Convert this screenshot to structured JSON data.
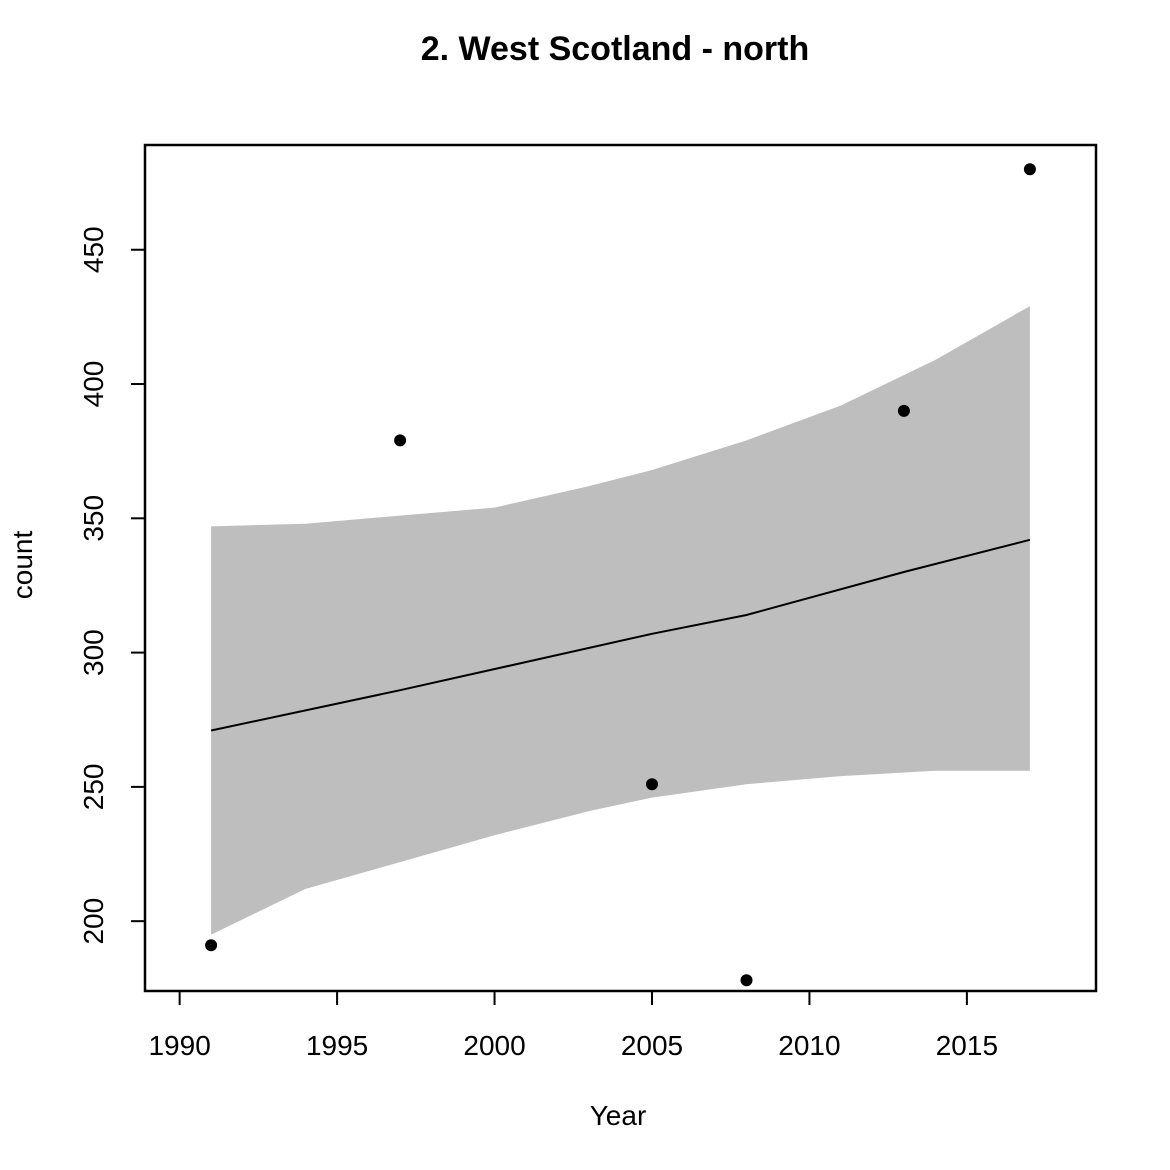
{
  "chart_data": {
    "type": "scatter",
    "title": "2. West Scotland - north",
    "xlabel": "Year",
    "ylabel": "count",
    "xlim": [
      1988.9,
      2019.1
    ],
    "ylim": [
      174,
      489
    ],
    "xticks": [
      1990,
      1995,
      2000,
      2005,
      2010,
      2015
    ],
    "yticks": [
      200,
      250,
      300,
      350,
      400,
      450
    ],
    "grid": false,
    "points": [
      {
        "x": 1991,
        "y": 191
      },
      {
        "x": 1997,
        "y": 379
      },
      {
        "x": 2005,
        "y": 251
      },
      {
        "x": 2008,
        "y": 178
      },
      {
        "x": 2013,
        "y": 390
      },
      {
        "x": 2017,
        "y": 480
      }
    ],
    "fit_line": {
      "x": [
        1991,
        1997,
        2005,
        2008,
        2013,
        2017
      ],
      "y": [
        271,
        286,
        307,
        314,
        330,
        342
      ]
    },
    "confidence_band": {
      "x": [
        1991,
        1994,
        1997,
        2000,
        2003,
        2005,
        2008,
        2011,
        2014,
        2017
      ],
      "upper": [
        347,
        348,
        351,
        354,
        362,
        368,
        379,
        392,
        409,
        429
      ],
      "lower": [
        195,
        212,
        222,
        232,
        241,
        246,
        251,
        254,
        256,
        256
      ]
    },
    "colors": {
      "points": "#000000",
      "fit_line": "#000000",
      "band": "#bebebe",
      "frame": "#000000"
    }
  }
}
